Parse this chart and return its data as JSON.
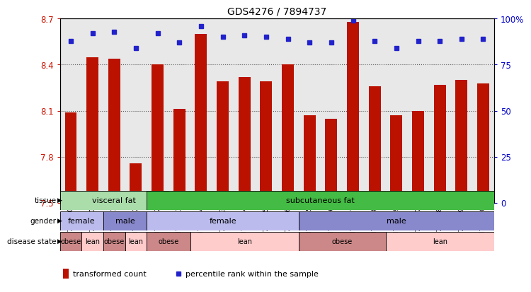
{
  "title": "GDS4276 / 7894737",
  "samples": [
    "GSM737030",
    "GSM737031",
    "GSM737021",
    "GSM737032",
    "GSM737022",
    "GSM737023",
    "GSM737024",
    "GSM737013",
    "GSM737014",
    "GSM737015",
    "GSM737016",
    "GSM737025",
    "GSM737026",
    "GSM737027",
    "GSM737028",
    "GSM737029",
    "GSM737017",
    "GSM737018",
    "GSM737019",
    "GSM737020"
  ],
  "bar_values": [
    8.09,
    8.45,
    8.44,
    7.76,
    8.4,
    8.11,
    8.6,
    8.29,
    8.32,
    8.29,
    8.4,
    8.07,
    8.05,
    8.68,
    8.26,
    8.07,
    8.1,
    8.27,
    8.3,
    8.28
  ],
  "percentile_values": [
    88,
    92,
    93,
    84,
    92,
    87,
    96,
    90,
    91,
    90,
    89,
    87,
    87,
    99,
    88,
    84,
    88,
    88,
    89,
    89
  ],
  "ylim_left": [
    7.5,
    8.7
  ],
  "ylim_right": [
    0,
    100
  ],
  "yticks_left": [
    7.5,
    7.8,
    8.1,
    8.4,
    8.7
  ],
  "yticks_right": [
    0,
    25,
    50,
    75,
    100
  ],
  "bar_color": "#bb1100",
  "dot_color": "#2222cc",
  "tissue_groups": [
    {
      "label": "visceral fat",
      "start": 0,
      "end": 4,
      "color": "#aaddaa"
    },
    {
      "label": "subcutaneous fat",
      "start": 4,
      "end": 19,
      "color": "#44bb44"
    }
  ],
  "gender_groups": [
    {
      "label": "female",
      "start": 0,
      "end": 1,
      "color": "#bbbbee"
    },
    {
      "label": "male",
      "start": 2,
      "end": 3,
      "color": "#8888cc"
    },
    {
      "label": "female",
      "start": 4,
      "end": 10,
      "color": "#bbbbee"
    },
    {
      "label": "male",
      "start": 11,
      "end": 19,
      "color": "#8888cc"
    }
  ],
  "disease_groups": [
    {
      "label": "obese",
      "start": 0,
      "end": 0,
      "color": "#cc8888"
    },
    {
      "label": "lean",
      "start": 1,
      "end": 1,
      "color": "#ffcccc"
    },
    {
      "label": "obese",
      "start": 2,
      "end": 2,
      "color": "#cc8888"
    },
    {
      "label": "lean",
      "start": 3,
      "end": 3,
      "color": "#ffcccc"
    },
    {
      "label": "obese",
      "start": 4,
      "end": 5,
      "color": "#cc8888"
    },
    {
      "label": "lean",
      "start": 6,
      "end": 10,
      "color": "#ffcccc"
    },
    {
      "label": "obese",
      "start": 11,
      "end": 14,
      "color": "#cc8888"
    },
    {
      "label": "lean",
      "start": 15,
      "end": 19,
      "color": "#ffcccc"
    }
  ],
  "row_labels": [
    "tissue",
    "gender",
    "disease state"
  ],
  "legend_bar_label": "transformed count",
  "legend_dot_label": "percentile rank within the sample",
  "background_color": "#ffffff",
  "axis_bg_color": "#e8e8e8",
  "tick_label_color_left": "#cc1100",
  "tick_label_color_right": "#0000cc",
  "grid_color": "#555555",
  "spine_color": "#000000"
}
